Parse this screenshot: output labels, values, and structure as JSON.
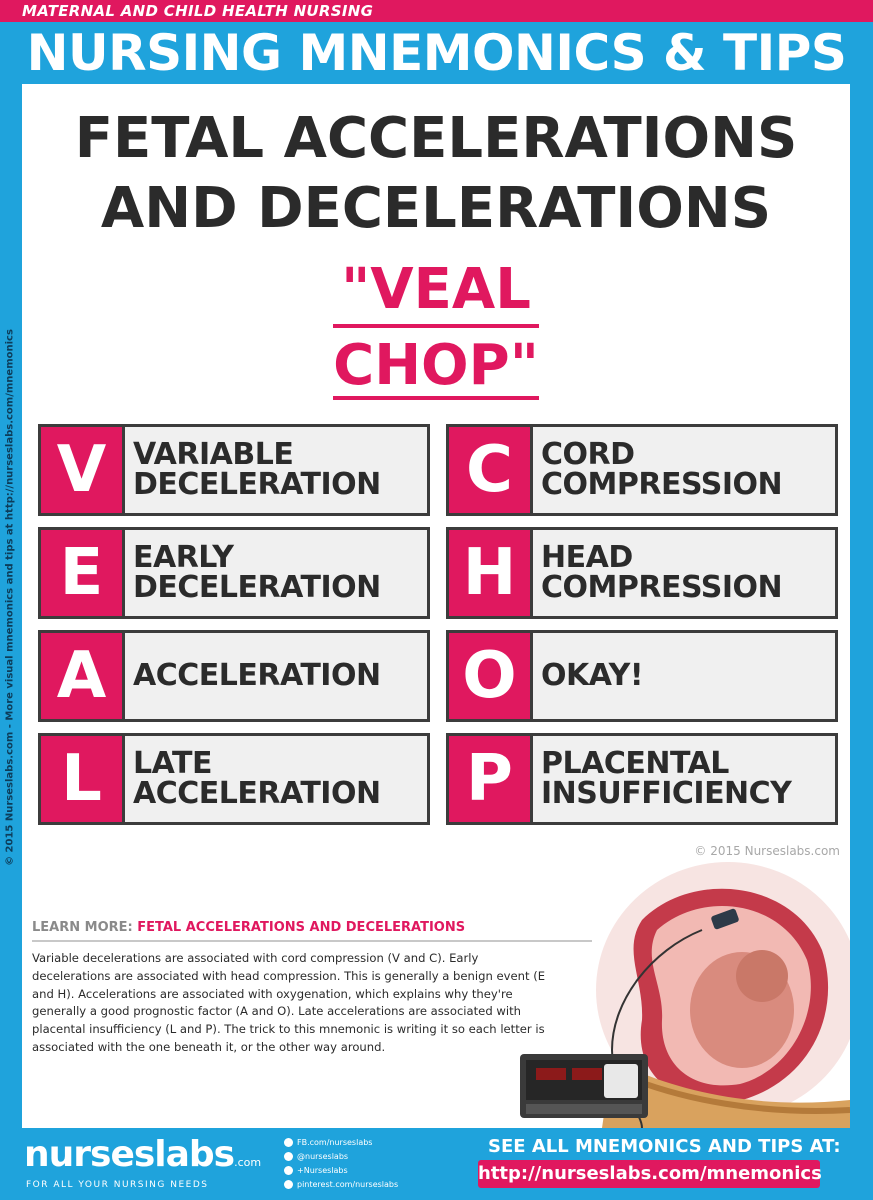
{
  "header": {
    "category": "MATERNAL AND CHILD HEALTH NURSING",
    "title": "NURSING MNEMONICS & TIPS"
  },
  "sidebar_credit": "© 2015 Nurseslabs.com - More visual mnemonics and tips at http://nurseslabs.com/mnemonics",
  "heading": {
    "line1": "FETAL ACCELERATIONS",
    "line2": "AND DECELERATIONS"
  },
  "mnemonic": {
    "line1": "\"VEAL",
    "line2": "CHOP\""
  },
  "left_column": [
    {
      "letter": "V",
      "line1": "VARIABLE",
      "line2": "DECELERATION"
    },
    {
      "letter": "E",
      "line1": "EARLY",
      "line2": "DECELERATION"
    },
    {
      "letter": "A",
      "line1": "ACCELERATION",
      "line2": ""
    },
    {
      "letter": "L",
      "line1": "LATE",
      "line2": "ACCELERATION"
    }
  ],
  "right_column": [
    {
      "letter": "C",
      "line1": "CORD",
      "line2": "COMPRESSION"
    },
    {
      "letter": "H",
      "line1": "HEAD",
      "line2": "COMPRESSION"
    },
    {
      "letter": "O",
      "line1": "OKAY!",
      "line2": ""
    },
    {
      "letter": "P",
      "line1": "PLACENTAL",
      "line2": "INSUFFICIENCY"
    }
  ],
  "copyright": "© 2015 Nurseslabs.com",
  "learn_more": {
    "label": "LEARN MORE:",
    "topic": "FETAL ACCELERATIONS AND DECELERATIONS",
    "text": "Variable decelerations are associated with cord compression (V and C). Early decelerations are associated with head compression. This is generally a benign event (E and H). Accelerations are associated with oxygenation, which explains why they're generally a good prognostic factor (A and O). Late accelerations are associated with placental insufficiency (L and P). The trick to this mnemonic is writing it so each letter is associated with the one beneath it, or the other way around."
  },
  "footer": {
    "logo": "nurseslabs",
    "logo_suffix": ".com",
    "tagline": "FOR ALL YOUR NURSING NEEDS",
    "social": [
      "FB.com/nurseslabs",
      "@nurseslabs",
      "+Nurseslabs",
      "pinterest.com/nurseslabs"
    ],
    "see_all": "SEE ALL MNEMONICS AND TIPS AT:",
    "url": "http://nurseslabs.com/mnemonics"
  },
  "colors": {
    "accent_pink": "#e0185f",
    "frame_blue": "#1fa3dc",
    "text_dark": "#2b2b2b"
  }
}
